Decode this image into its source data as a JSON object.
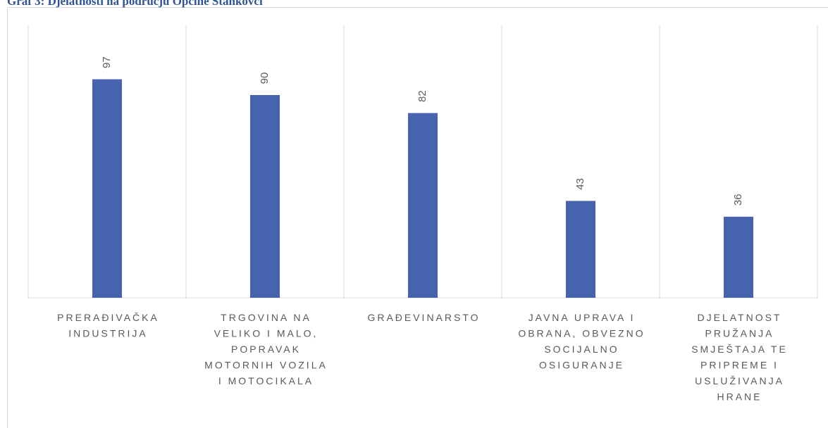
{
  "chart_data": {
    "type": "bar",
    "title": "Graf 3: Djelatnosti na području Općine Stankovci",
    "categories": [
      "PRERAĐIVAČKA INDUSTRIJA",
      "TRGOVINA NA VELIKO I MALO, POPRAVAK MOTORNIH VOZILA I MOTOCIKALA",
      "GRAĐEVINARSTO",
      "JAVNA UPRAVA I OBRANA, OBVEZNO SOCIJALNO OSIGURANJE",
      "DJELATNOST PRUŽANJA SMJEŠTAJA TE PRIPREME I USLUŽIVANJA HRANE"
    ],
    "values": [
      97,
      90,
      82,
      43,
      36
    ],
    "color": "#4763ae",
    "ylim": [
      0,
      120
    ]
  }
}
